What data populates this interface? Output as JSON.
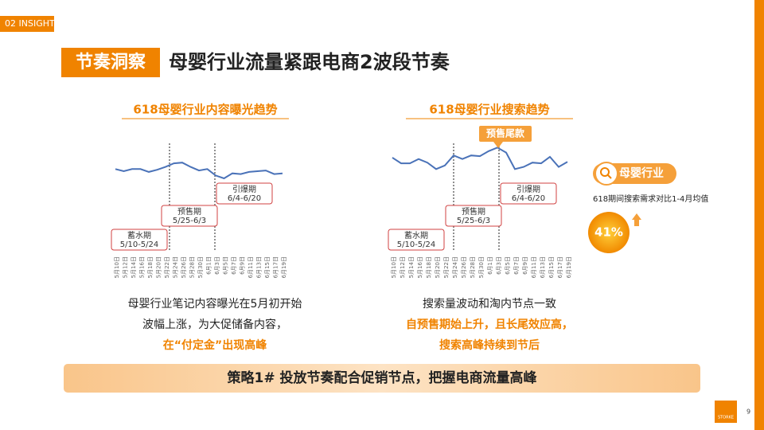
{
  "header": {
    "section": "02 INSIGHT",
    "tag": "节奏洞察",
    "title": "母婴行业流量紧跟电商2波段节奏"
  },
  "charts": [
    {
      "type": "line",
      "title": "618母婴行业内容曝光趋势",
      "color": "#4a72b8",
      "ylim": [
        0,
        100
      ],
      "categories": [
        "5月10日",
        "5月12日",
        "5月14日",
        "5月16日",
        "5月18日",
        "5月20日",
        "5月22日",
        "5月24日",
        "5月26日",
        "5月28日",
        "5月30日",
        "6月1日",
        "6月3日",
        "6月5日",
        "6月7日",
        "6月9日",
        "6月11日",
        "6月13日",
        "6月15日",
        "6月17日",
        "6月19日"
      ],
      "values": [
        53,
        50,
        53,
        53,
        49,
        52,
        56,
        61,
        62,
        56,
        51,
        53,
        44,
        40,
        47,
        46,
        49,
        50,
        51,
        46,
        47
      ],
      "phases": [
        {
          "name": "蓄水期",
          "range": "5/10-5/24"
        },
        {
          "name": "预售期",
          "range": "5/25-6/3"
        },
        {
          "name": "引爆期",
          "range": "6/4-6/20"
        }
      ],
      "caption": [
        "母婴行业笔记内容曝光在5月初开始",
        "波幅上涨，为大促储备内容，",
        "在“付定金”出现高峰"
      ]
    },
    {
      "type": "line",
      "title": "618母婴行业搜索趋势",
      "color": "#4a72b8",
      "ylim": [
        0,
        100
      ],
      "annotation": "预售尾款",
      "categories": [
        "5月10日",
        "5月12日",
        "5月14日",
        "5月16日",
        "5月18日",
        "5月20日",
        "5月22日",
        "5月24日",
        "5月26日",
        "5月28日",
        "5月30日",
        "6月1日",
        "6月3日",
        "6月5日",
        "6月7日",
        "6月9日",
        "6月11日",
        "6月13日",
        "6月15日",
        "6月17日",
        "6月19日"
      ],
      "values": [
        69,
        61,
        61,
        67,
        62,
        53,
        58,
        72,
        67,
        72,
        71,
        78,
        83,
        76,
        53,
        56,
        62,
        61,
        70,
        56,
        63
      ],
      "phases": [
        {
          "name": "蓄水期",
          "range": "5/10-5/24"
        },
        {
          "name": "预售期",
          "range": "5/25-6/3"
        },
        {
          "name": "引爆期",
          "range": "6/4-6/20"
        }
      ],
      "caption": [
        "搜索量波动和淘内节点一致",
        "自预售期始上升，且长尾效应高，",
        "搜索高峰持续到节后"
      ]
    }
  ],
  "side": {
    "label": "母婴行业",
    "note": "618期间搜索需求对比1-4月均值",
    "stat": "41%"
  },
  "banner": "策略1# 投放节奏配合促销节点，把握电商流量高峰",
  "footer": {
    "logo": "STORKE",
    "page": "9"
  }
}
